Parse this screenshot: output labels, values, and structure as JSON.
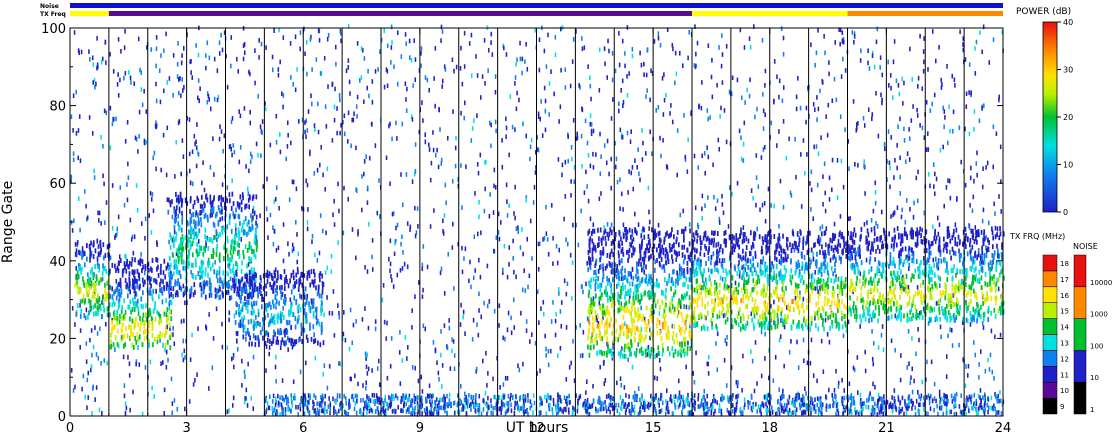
{
  "header_bars": {
    "noise_label": "Noise",
    "txfreq_label": "TX Freq",
    "noise_color": "#1010d8",
    "txfreq_segments": [
      {
        "start": 0,
        "end": 1,
        "color": "#ffff00"
      },
      {
        "start": 1,
        "end": 16,
        "color": "#5a0a96"
      },
      {
        "start": 16,
        "end": 20,
        "color": "#ffff00"
      },
      {
        "start": 20,
        "end": 24,
        "color": "#ff8800"
      }
    ]
  },
  "chart_data": {
    "type": "heatmap",
    "title": "",
    "xlabel": "UT hours",
    "ylabel": "Range Gate",
    "xlim": [
      0,
      24
    ],
    "ylim": [
      0,
      100
    ],
    "xticks": [
      0,
      3,
      6,
      9,
      12,
      15,
      18,
      21,
      24
    ],
    "yticks": [
      0,
      20,
      40,
      60,
      80,
      100
    ],
    "scan_boundaries_ut": [
      1,
      2,
      3,
      4,
      5,
      6,
      7,
      8,
      9,
      10,
      11,
      12,
      13,
      14,
      15,
      16,
      17,
      18,
      19,
      20,
      21,
      22,
      23
    ],
    "echo_regions": [
      {
        "ut": [
          0.1,
          1.0
        ],
        "gate": [
          25,
          45
        ],
        "peak_gate": 32,
        "power_db": 32
      },
      {
        "ut": [
          1.0,
          2.6
        ],
        "gate": [
          17,
          40
        ],
        "peak_gate": 22,
        "power_db": 34
      },
      {
        "ut": [
          2.5,
          4.8
        ],
        "gate": [
          30,
          57
        ],
        "peak_gate": 42,
        "power_db": 24
      },
      {
        "ut": [
          4.2,
          6.5
        ],
        "gate": [
          18,
          37
        ],
        "peak_gate": 26,
        "power_db": 18
      },
      {
        "ut": [
          13.3,
          16.0
        ],
        "gate": [
          15,
          48
        ],
        "peak_gate": 23,
        "power_db": 36
      },
      {
        "ut": [
          16.0,
          20.0
        ],
        "gate": [
          22,
          47
        ],
        "peak_gate": 29,
        "power_db": 35
      },
      {
        "ut": [
          20.0,
          24.0
        ],
        "gate": [
          24,
          48
        ],
        "peak_gate": 31,
        "power_db": 32
      }
    ],
    "power_colorbar": {
      "label": "POWER (dB)",
      "range": [
        0,
        40
      ],
      "ticks": [
        0,
        10,
        20,
        30,
        40
      ]
    },
    "txfreq_colorbar": {
      "label": "TX FRQ (MHz)",
      "levels": [
        9,
        10,
        11,
        12,
        13,
        14,
        15,
        16,
        17,
        18
      ],
      "colors": [
        "#000000",
        "#5a0a96",
        "#2020c8",
        "#1080f0",
        "#00e0e0",
        "#00c030",
        "#b8f000",
        "#ffe000",
        "#ff8800",
        "#e81010"
      ]
    },
    "noise_colorbar": {
      "label": "NOISE",
      "ticks": [
        "1",
        "10",
        "100",
        "1000",
        "10000"
      ],
      "colors": [
        "#000000",
        "#2020c8",
        "#00c030",
        "#ff8800",
        "#e81010"
      ]
    }
  }
}
